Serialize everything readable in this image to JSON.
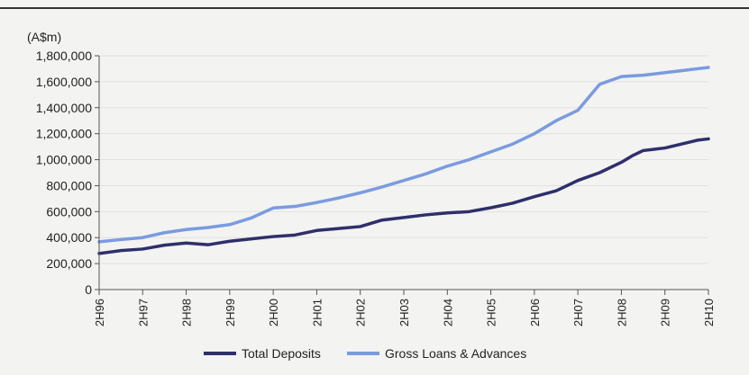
{
  "chart_data": {
    "type": "line",
    "unit_label": "(A$m)",
    "xlabel": "",
    "ylabel": "",
    "ylim": [
      0,
      1800000
    ],
    "y_ticks": [
      0,
      200000,
      400000,
      600000,
      800000,
      1000000,
      1200000,
      1400000,
      1600000,
      1800000
    ],
    "y_tick_labels": [
      "0",
      "200,000",
      "400,000",
      "600,000",
      "800,000",
      "1,000,000",
      "1,200,000",
      "1,400,000",
      "1,600,000",
      "1,800,000"
    ],
    "categories": [
      "2H96",
      "2H97",
      "2H98",
      "2H99",
      "2H00",
      "2H01",
      "2H02",
      "2H03",
      "2H04",
      "2H05",
      "2H06",
      "2H07",
      "2H08",
      "2H09",
      "2H10"
    ],
    "x": [
      0,
      0.5,
      1,
      1.5,
      2,
      2.5,
      3,
      3.5,
      4,
      4.5,
      5,
      5.5,
      6,
      6.5,
      7,
      7.5,
      8,
      8.5,
      9,
      9.5,
      10,
      10.5,
      11,
      11.5,
      12,
      12.25,
      12.5,
      12.75,
      13,
      13.25,
      13.5,
      13.75,
      14
    ],
    "grid": true,
    "legend_position": "bottom",
    "series": [
      {
        "name": "Total Deposits",
        "color": "#2e2f6b",
        "values": [
          278000,
          300000,
          312000,
          342000,
          358000,
          345000,
          372000,
          390000,
          408000,
          420000,
          455000,
          470000,
          485000,
          535000,
          555000,
          575000,
          590000,
          600000,
          630000,
          665000,
          715000,
          760000,
          840000,
          900000,
          980000,
          1030000,
          1070000,
          1080000,
          1090000,
          1110000,
          1130000,
          1150000,
          1160000
        ]
      },
      {
        "name": "Gross Loans & Advances",
        "color": "#7a9bdf",
        "values": [
          368000,
          385000,
          400000,
          438000,
          462000,
          478000,
          500000,
          552000,
          628000,
          640000,
          670000,
          705000,
          745000,
          790000,
          840000,
          890000,
          950000,
          1000000,
          1060000,
          1120000,
          1200000,
          1300000,
          1380000,
          1580000,
          1640000,
          1645000,
          1650000,
          1660000,
          1670000,
          1680000,
          1690000,
          1700000,
          1710000
        ]
      }
    ]
  }
}
